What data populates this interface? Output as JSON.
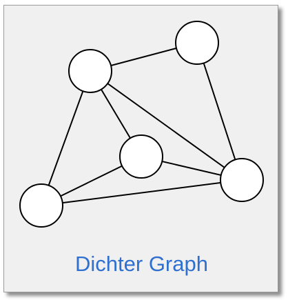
{
  "diagram": {
    "caption": "Dichter Graph",
    "colors": {
      "caption": "#2e6fd0",
      "node_fill": "#ffffff",
      "stroke": "#000000",
      "card_background": "#f0f0f0"
    },
    "nodes": [
      {
        "id": "n1"
      },
      {
        "id": "n2"
      },
      {
        "id": "n3"
      },
      {
        "id": "n4"
      },
      {
        "id": "n5"
      }
    ],
    "edges": [
      {
        "from": "n2",
        "to": "n1"
      },
      {
        "from": "n2",
        "to": "n3"
      },
      {
        "from": "n2",
        "to": "n5"
      },
      {
        "from": "n2",
        "to": "n4"
      },
      {
        "from": "n1",
        "to": "n5"
      },
      {
        "from": "n3",
        "to": "n5"
      },
      {
        "from": "n3",
        "to": "n4"
      },
      {
        "from": "n4",
        "to": "n5"
      }
    ]
  }
}
